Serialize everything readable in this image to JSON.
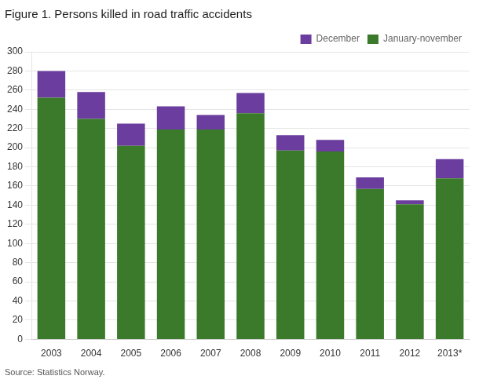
{
  "chart_data": {
    "type": "bar",
    "title": "Figure 1. Persons killed in road traffic accidents",
    "categories": [
      "2003",
      "2004",
      "2005",
      "2006",
      "2007",
      "2008",
      "2009",
      "2010",
      "2011",
      "2012",
      "2013*"
    ],
    "series": [
      {
        "name": "January-november",
        "color": "#3a7a2a",
        "values": [
          252,
          230,
          202,
          219,
          219,
          236,
          197,
          196,
          157,
          141,
          168
        ]
      },
      {
        "name": "December",
        "color": "#6a3d9e",
        "values": [
          28,
          28,
          23,
          24,
          15,
          21,
          16,
          12,
          12,
          4,
          20
        ]
      }
    ],
    "stacked": true,
    "ylim": [
      0,
      300
    ],
    "yticks": [
      0,
      20,
      40,
      60,
      80,
      100,
      120,
      140,
      160,
      180,
      200,
      220,
      240,
      260,
      280,
      300
    ],
    "grid": true,
    "legend": "upper right",
    "annotations": [
      "Source: Statistics Norway."
    ]
  }
}
